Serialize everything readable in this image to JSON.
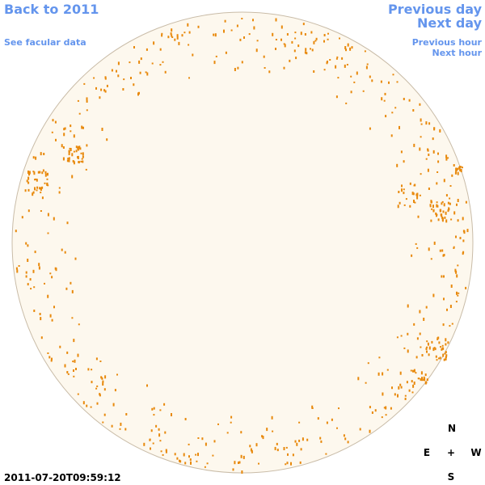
{
  "nav": {
    "back": "Back to 2011",
    "facular": "See facular data",
    "prev_day": "Previous day",
    "next_day": "Next day",
    "prev_hour": "Previous hour",
    "next_hour": "Next hour"
  },
  "timestamp": "2011-07-20T09:59:12",
  "compass": {
    "north": "N",
    "east": "E",
    "center": "+",
    "west": "W",
    "south": "S"
  }
}
